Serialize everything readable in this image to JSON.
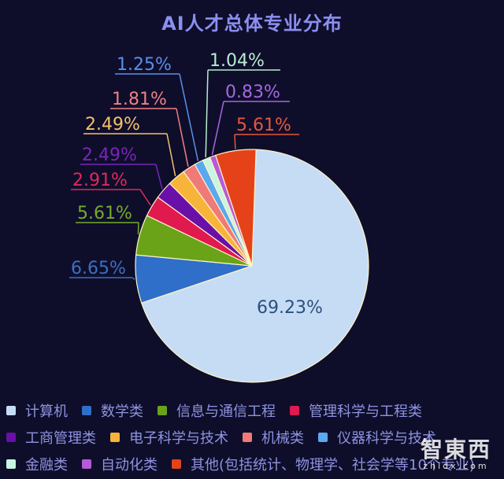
{
  "header": {
    "title": "AI人才总体专业分布"
  },
  "chart_data": {
    "type": "pie",
    "title": "AI人才总体专业分布",
    "legend_position": "bottom",
    "start_angle_deg": 2,
    "direction": "clockwise",
    "slices": [
      {
        "label": "计算机",
        "value": 69.23,
        "display": "69.23%",
        "color": "#c6dcf5"
      },
      {
        "label": "数学类",
        "value": 6.65,
        "display": "6.65%",
        "color": "#2f6fc9"
      },
      {
        "label": "信息与通信工程",
        "value": 5.61,
        "display": "5.61%",
        "color": "#6aa318"
      },
      {
        "label": "管理科学与工程类",
        "value": 2.91,
        "display": "2.91%",
        "color": "#e0194e"
      },
      {
        "label": "工商管理类",
        "value": 2.49,
        "display": "2.49%",
        "color": "#6a0fa8"
      },
      {
        "label": "电子科学与技术",
        "value": 2.49,
        "display": "2.49%",
        "color": "#f8b43a"
      },
      {
        "label": "机械类",
        "value": 1.81,
        "display": "1.81%",
        "color": "#f07a78"
      },
      {
        "label": "仪器科学与技术",
        "value": 1.25,
        "display": "1.25%",
        "color": "#5aa8ef"
      },
      {
        "label": "金融类",
        "value": 1.04,
        "display": "1.04%",
        "color": "#c8f5e0"
      },
      {
        "label": "自动化类",
        "value": 0.83,
        "display": "0.83%",
        "color": "#b65ad9"
      },
      {
        "label": "其他(包括统计、物理学、社会学等10个专业)",
        "value": 5.61,
        "display": "5.61%",
        "color": "#e5421a"
      }
    ]
  },
  "labels": [
    {
      "text": "69.23%",
      "color": "#2a4f7e"
    },
    {
      "text": "6.65%",
      "color": "#3c6fc0"
    },
    {
      "text": "5.61%",
      "color": "#76ab2a"
    },
    {
      "text": "2.91%",
      "color": "#e0285a"
    },
    {
      "text": "2.49%",
      "color": "#7a25b8"
    },
    {
      "text": "2.49%",
      "color": "#f6c06a"
    },
    {
      "text": "1.81%",
      "color": "#ee8085"
    },
    {
      "text": "1.25%",
      "color": "#5c8ee8"
    },
    {
      "text": "1.04%",
      "color": "#b9ecd2"
    },
    {
      "text": "0.83%",
      "color": "#a767df"
    },
    {
      "text": "5.61%",
      "color": "#e8563a"
    }
  ],
  "legend": {
    "rows": [
      [
        {
          "label": "计算机",
          "color": "#c6dcf5"
        },
        {
          "label": "数学类",
          "color": "#2f6fc9"
        },
        {
          "label": "信息与通信工程",
          "color": "#6aa318"
        },
        {
          "label": "管理科学与工程类",
          "color": "#e0194e"
        }
      ],
      [
        {
          "label": "工商管理类",
          "color": "#6a0fa8"
        },
        {
          "label": "电子科学与技术",
          "color": "#f8b43a"
        },
        {
          "label": "机械类",
          "color": "#f07a78"
        },
        {
          "label": "仪器科学与技术",
          "color": "#5aa8ef"
        }
      ],
      [
        {
          "label": "金融类",
          "color": "#c8f5e0"
        },
        {
          "label": "自动化类",
          "color": "#b65ad9"
        },
        {
          "label": "其他(包括统计、物理学、社会学等10个专业)",
          "color": "#e5421a"
        }
      ]
    ]
  },
  "watermark": {
    "main": "智東西",
    "sub": "zhidx.com"
  }
}
